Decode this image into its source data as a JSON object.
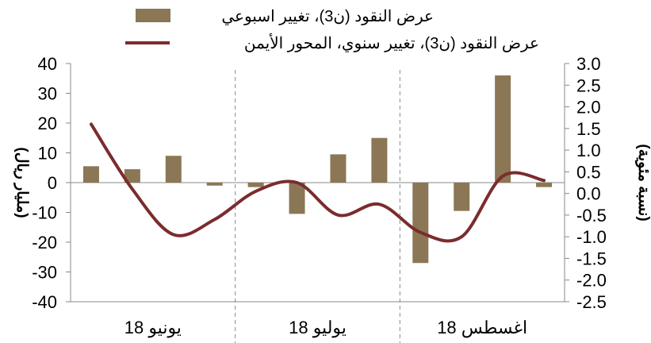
{
  "chart_data": {
    "type": "bar+line",
    "legend": [
      {
        "label": "عرض النقود (ن3)، تغيير اسبوعي",
        "kind": "bar",
        "color": "#8B7755"
      },
      {
        "label": "عرض النقود (ن3)، تغيير سنوي، المحور الأيمن",
        "kind": "line",
        "color": "#7B2C2E"
      }
    ],
    "legend_position": "top",
    "left_axis": {
      "label": "(مليار ريال)",
      "min": -40,
      "max": 40,
      "ticks": [
        40,
        30,
        20,
        10,
        0,
        -10,
        -20,
        -30,
        -40
      ]
    },
    "right_axis": {
      "label": "(نسبة مئوية)",
      "min": -2.5,
      "max": 3.0,
      "ticks": [
        "3.0",
        "2.5",
        "2.0",
        "1.5",
        "1.0",
        "0.5",
        "0.0",
        "-0.5",
        "-1.0",
        "-1.5",
        "-2.0",
        "-2.5"
      ]
    },
    "months": [
      "يونيو 18",
      "يوليو 18",
      "اغسطس 18"
    ],
    "weeks_per_month": [
      4,
      4,
      4
    ],
    "bar_series": {
      "name": "عرض النقود (ن3)، تغيير اسبوعي",
      "values": [
        5.5,
        4.5,
        9.0,
        -1.0,
        -1.5,
        -10.5,
        9.5,
        15.0,
        -27.0,
        -9.5,
        36.0,
        -1.5
      ]
    },
    "line_series": {
      "name": "عرض النقود (ن3)، تغيير سنوي، المحور الأيمن",
      "values": [
        1.6,
        0.1,
        -0.95,
        -0.6,
        0.05,
        0.25,
        -0.5,
        -0.25,
        -0.9,
        -1.0,
        0.4,
        0.3
      ]
    },
    "grid": false
  }
}
